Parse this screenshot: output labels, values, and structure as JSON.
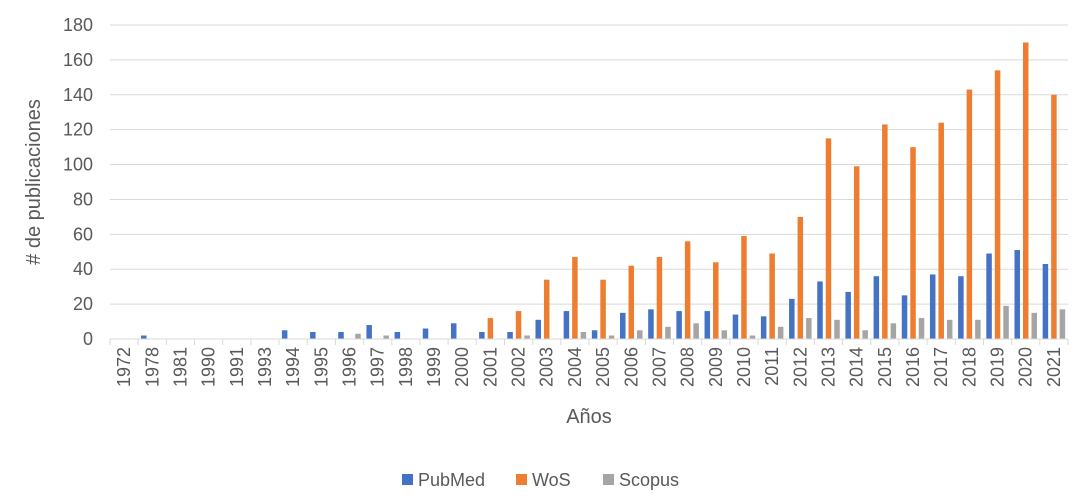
{
  "chart_data": {
    "type": "bar",
    "xlabel": "Años",
    "ylabel": "# de publicaciones",
    "ylim": [
      0,
      180
    ],
    "yticks": [
      0,
      20,
      40,
      60,
      80,
      100,
      120,
      140,
      160,
      180
    ],
    "grid": true,
    "legend_position": "bottom",
    "categories": [
      "1972",
      "1978",
      "1981",
      "1990",
      "1991",
      "1993",
      "1994",
      "1995",
      "1996",
      "1997",
      "1998",
      "1999",
      "2000",
      "2001",
      "2002",
      "2003",
      "2004",
      "2005",
      "2006",
      "2007",
      "2008",
      "2009",
      "2010",
      "2011",
      "2012",
      "2013",
      "2014",
      "2015",
      "2016",
      "2017",
      "2018",
      "2019",
      "2020",
      "2021"
    ],
    "series": [
      {
        "name": "PubMed",
        "color": "#4472C4",
        "values": [
          0,
          2,
          0,
          0,
          0,
          0,
          5,
          4,
          4,
          8,
          4,
          6,
          9,
          4,
          4,
          11,
          16,
          5,
          15,
          17,
          16,
          16,
          14,
          13,
          23,
          33,
          27,
          36,
          25,
          37,
          36,
          49,
          51,
          43
        ]
      },
      {
        "name": "WoS",
        "color": "#ED7D31",
        "values": [
          0,
          0,
          0,
          0,
          0,
          0,
          0,
          0,
          0,
          0,
          0,
          0,
          0,
          12,
          16,
          34,
          47,
          34,
          42,
          47,
          56,
          44,
          59,
          49,
          70,
          115,
          99,
          123,
          110,
          124,
          143,
          154,
          170,
          140
        ]
      },
      {
        "name": "Scopus",
        "color": "#A5A5A5",
        "values": [
          0,
          0,
          0,
          0,
          0,
          0,
          0,
          0,
          3,
          2,
          0,
          0,
          0,
          0,
          2,
          0,
          4,
          2,
          5,
          7,
          9,
          5,
          2,
          7,
          12,
          11,
          5,
          9,
          12,
          11,
          11,
          19,
          15,
          17
        ]
      }
    ]
  }
}
